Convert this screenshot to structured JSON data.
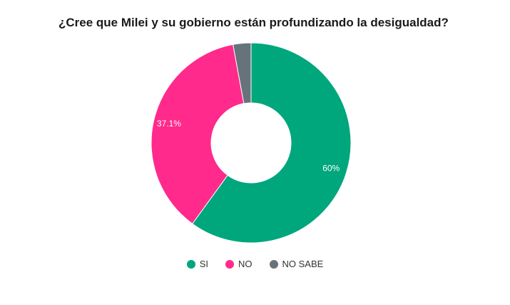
{
  "chart_data": {
    "type": "pie",
    "donut": true,
    "title": "¿Cree que Milei y su gobierno están profundizando la desigualdad?",
    "categories": [
      "SI",
      "NO",
      "NO SABE"
    ],
    "values": [
      60,
      37.1,
      2.9
    ],
    "data_labels": [
      "60%",
      "37.1%",
      ""
    ],
    "colors": [
      "#00a67c",
      "#ff2a8c",
      "#67737a"
    ],
    "legend_position": "bottom"
  }
}
